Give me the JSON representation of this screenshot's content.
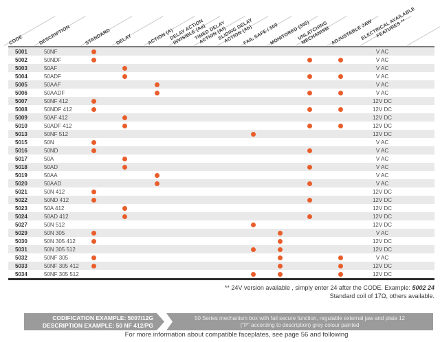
{
  "table": {
    "headers": [
      {
        "id": "code",
        "lines": [
          "CODE"
        ]
      },
      {
        "id": "description",
        "lines": [
          "DESCRIPTION"
        ]
      },
      {
        "id": "standard",
        "lines": [
          "STANDARD"
        ]
      },
      {
        "id": "delay",
        "lines": [
          "DELAY"
        ]
      },
      {
        "id": "action_a",
        "lines": [
          "ACTION (A)"
        ]
      },
      {
        "id": "invisible_aa",
        "lines": [
          "DELAY ACTION",
          "INVISIBLE (Aa)"
        ]
      },
      {
        "id": "timed_at",
        "lines": [
          "TIMED DELAY",
          "ACTION (At)"
        ]
      },
      {
        "id": "sliding_ab",
        "lines": [
          "SLIDING DELAY",
          "ACTION (Ab)"
        ]
      },
      {
        "id": "fail_safe",
        "lines": [
          "FAIL SAFE / 500"
        ]
      },
      {
        "id": "monitored",
        "lines": [
          "MONITORED (305)"
        ]
      },
      {
        "id": "unlatching",
        "lines": [
          "UNLATCHING",
          "MECHANISM"
        ]
      },
      {
        "id": "adjustable_jaw",
        "lines": [
          "ADJUSTABLE JAW"
        ]
      },
      {
        "id": "electrical",
        "lines": [
          "ELECTRICAL AVAILABLE",
          "FEATURES **"
        ]
      }
    ],
    "feature_keys": [
      "standard",
      "delay",
      "action_a",
      "invisible_aa",
      "timed_at",
      "sliding_ab",
      "fail_safe",
      "monitored",
      "unlatching",
      "adjustable_jaw"
    ],
    "rows": [
      {
        "code": "5001",
        "description": "50NF",
        "features": [
          "standard"
        ],
        "electrical": "V AC"
      },
      {
        "code": "5002",
        "description": "50NDF",
        "features": [
          "standard",
          "unlatching",
          "adjustable_jaw"
        ],
        "electrical": "V AC"
      },
      {
        "code": "5003",
        "description": "50AF",
        "features": [
          "delay"
        ],
        "electrical": "V AC"
      },
      {
        "code": "5004",
        "description": "50ADF",
        "features": [
          "delay",
          "unlatching",
          "adjustable_jaw"
        ],
        "electrical": "V AC"
      },
      {
        "code": "5005",
        "description": "50AAF",
        "features": [
          "action_a"
        ],
        "electrical": "V AC"
      },
      {
        "code": "5006",
        "description": "50AADF",
        "features": [
          "action_a",
          "unlatching",
          "adjustable_jaw"
        ],
        "electrical": "V AC"
      },
      {
        "code": "5007",
        "description": "50NF 412",
        "features": [
          "standard"
        ],
        "electrical": "12V DC"
      },
      {
        "code": "5008",
        "description": "50NDF 412",
        "features": [
          "standard",
          "unlatching",
          "adjustable_jaw"
        ],
        "electrical": "12V DC"
      },
      {
        "code": "5009",
        "description": "50AF 412",
        "features": [
          "delay"
        ],
        "electrical": "12V DC"
      },
      {
        "code": "5010",
        "description": "50ADF 412",
        "features": [
          "delay",
          "unlatching",
          "adjustable_jaw"
        ],
        "electrical": "12V DC"
      },
      {
        "code": "5013",
        "description": "50NF 512",
        "features": [
          "fail_safe"
        ],
        "electrical": "12V DC"
      },
      {
        "code": "5015",
        "description": "50N",
        "features": [
          "standard"
        ],
        "electrical": "V AC"
      },
      {
        "code": "5016",
        "description": "50ND",
        "features": [
          "standard",
          "unlatching"
        ],
        "electrical": "V AC"
      },
      {
        "code": "5017",
        "description": "50A",
        "features": [
          "delay"
        ],
        "electrical": "V AC"
      },
      {
        "code": "5018",
        "description": "50AD",
        "features": [
          "delay",
          "unlatching"
        ],
        "electrical": "V AC"
      },
      {
        "code": "5019",
        "description": "50AA",
        "features": [
          "action_a"
        ],
        "electrical": "V AC"
      },
      {
        "code": "5020",
        "description": "50AAD",
        "features": [
          "action_a",
          "unlatching"
        ],
        "electrical": "V AC"
      },
      {
        "code": "5021",
        "description": "50N 412",
        "features": [
          "standard"
        ],
        "electrical": "12V DC"
      },
      {
        "code": "5022",
        "description": "50ND 412",
        "features": [
          "standard",
          "unlatching"
        ],
        "electrical": "12V DC"
      },
      {
        "code": "5023",
        "description": "50A 412",
        "features": [
          "delay"
        ],
        "electrical": "12V DC"
      },
      {
        "code": "5024",
        "description": "50AD 412",
        "features": [
          "delay",
          "unlatching"
        ],
        "electrical": "12V DC"
      },
      {
        "code": "5027",
        "description": "50N 512",
        "features": [
          "fail_safe"
        ],
        "electrical": "12V DC"
      },
      {
        "code": "5029",
        "description": "50N 305",
        "features": [
          "standard",
          "monitored"
        ],
        "electrical": "V AC"
      },
      {
        "code": "5030",
        "description": "50N 305 412",
        "features": [
          "standard",
          "monitored"
        ],
        "electrical": "12V DC"
      },
      {
        "code": "5031",
        "description": "50N 305 512",
        "features": [
          "fail_safe",
          "monitored"
        ],
        "electrical": "12V DC"
      },
      {
        "code": "5032",
        "description": "50NF 305",
        "features": [
          "standard",
          "monitored",
          "adjustable_jaw"
        ],
        "electrical": "V AC"
      },
      {
        "code": "5033",
        "description": "50NF 305 412",
        "features": [
          "standard",
          "monitored",
          "adjustable_jaw"
        ],
        "electrical": "12V DC"
      },
      {
        "code": "5034",
        "description": "50NF 305 512",
        "features": [
          "fail_safe",
          "monitored",
          "adjustable_jaw"
        ],
        "electrical": "12V DC"
      }
    ]
  },
  "notes": {
    "line1": "** 24V version available , simply enter 24 after the CODE. Example: ",
    "line1_example": "5002 24",
    "line2": "Standard coil of 17Ω, others available."
  },
  "codification": {
    "line1": "CODIFICATION EXAMPLE: 5007/12G",
    "line2": "DESCRIPTION EXAMPLE: 50 NF 412/PG",
    "desc_line1": "50 Series mechanism box with fail secure function, regulable external jaw and plate 12",
    "desc_line2": "(“P” according to description) grey colour painted"
  },
  "footer": {
    "text": "For more information about compatible faceplates, see page 56 and following"
  },
  "colors": {
    "accent_dot": "#E95D2A",
    "row_stripe": "#E9E9E9",
    "bar_gray": "#9B9B9B",
    "header_text": "#3C3C3C"
  }
}
